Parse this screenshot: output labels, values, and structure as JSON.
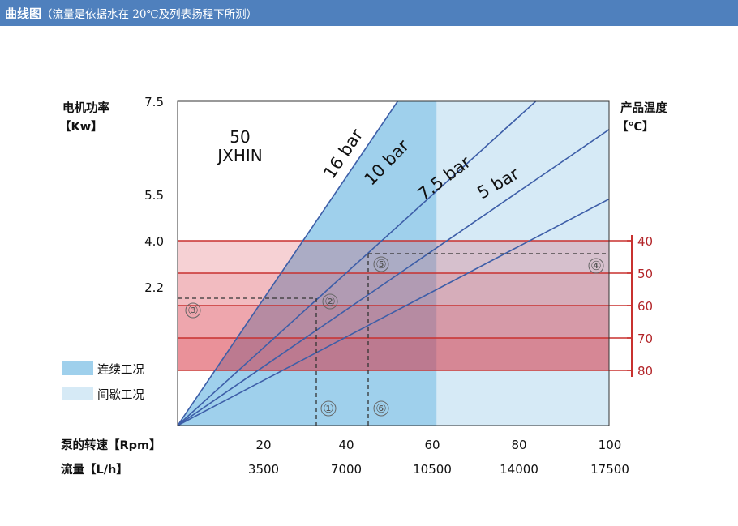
{
  "header": {
    "title": "曲线图",
    "note": "（流量是依据水在 20℃及列表扬程下所测）"
  },
  "chart_data": {
    "type": "line",
    "model": [
      "50",
      "JXHIN"
    ],
    "left_axis": {
      "label_line1": "电机功率",
      "label_line2": "【Kw】",
      "ticks": [
        "7.5",
        "5.5",
        "4.0",
        "2.2"
      ]
    },
    "right_axis": {
      "label_line1": "产品温度",
      "label_line2": "【℃】",
      "ticks": [
        "40",
        "50",
        "60",
        "70",
        "80"
      ]
    },
    "x_axis_speed": {
      "label": "泵的转速【Rpm】",
      "ticks": [
        "20",
        "40",
        "60",
        "80",
        "100"
      ]
    },
    "x_axis_flow": {
      "label": "流量【L/h】",
      "ticks": [
        "3500",
        "7000",
        "10500",
        "14000",
        "17500"
      ]
    },
    "legend": [
      {
        "label": "连续工况",
        "color": "#9fd0ec"
      },
      {
        "label": "间歇工况",
        "color": "#d6eaf6"
      }
    ],
    "continuous_max_speed": 60,
    "x_range": [
      0,
      100
    ],
    "series": [
      {
        "name": "16 bar",
        "points": [
          [
            0,
            0
          ],
          [
            51,
            7.5
          ]
        ]
      },
      {
        "name": "10 bar",
        "points": [
          [
            0,
            0
          ],
          [
            83,
            7.5
          ]
        ]
      },
      {
        "name": "7.5 bar",
        "points": [
          [
            0,
            0
          ],
          [
            100,
            6.9
          ]
        ]
      },
      {
        "name": "5 bar",
        "points": [
          [
            0,
            0
          ],
          [
            100,
            5.38
          ]
        ]
      }
    ],
    "temperature_bands": [
      "40",
      "50",
      "60",
      "70",
      "80"
    ],
    "markers": [
      {
        "label": "①",
        "x": 32
      },
      {
        "label": "②",
        "x": 35
      },
      {
        "label": "③",
        "x": 4
      },
      {
        "label": "④",
        "x": 97
      },
      {
        "label": "⑤",
        "x": 47
      },
      {
        "label": "⑥",
        "x": 47
      }
    ],
    "colors": {
      "line": "#3d5ea8",
      "temp_line": "#c8312f",
      "header": "#4f80bd"
    }
  }
}
